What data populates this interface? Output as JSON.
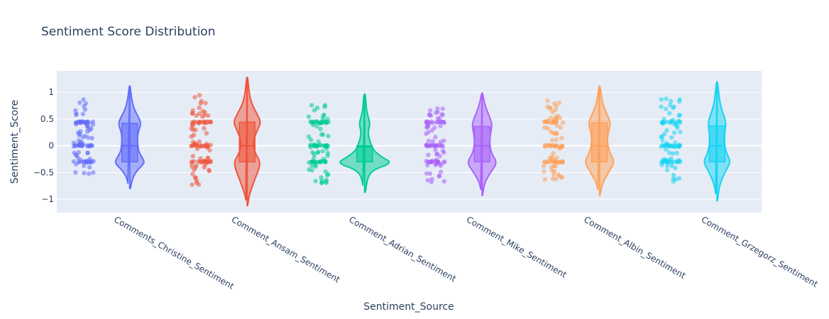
{
  "chart_data": {
    "type": "violin",
    "title": "Sentiment Score Distribution",
    "xlabel": "Sentiment_Source",
    "ylabel": "Sentiment_Score",
    "ylim": [
      -1.25,
      1.4
    ],
    "yticks": [
      -1,
      -0.5,
      0,
      0.5,
      1
    ],
    "ytick_labels": [
      "−1",
      "−0.5",
      "0",
      "0.5",
      "1"
    ],
    "grid": true,
    "legend": "none",
    "series": [
      {
        "name": "Comments_Christine_Sentiment",
        "color": "#636efa",
        "kde_max": 1.12,
        "kde_min": -0.8,
        "q1": -0.3,
        "median": 0.0,
        "q3": 0.42,
        "points_max": 0.87,
        "points_min": -0.53,
        "profile": [
          [
            -0.8,
            0.03
          ],
          [
            -0.6,
            0.1
          ],
          [
            -0.45,
            0.28
          ],
          [
            -0.32,
            0.55
          ],
          [
            -0.22,
            0.45
          ],
          [
            -0.1,
            0.32
          ],
          [
            0,
            0.3
          ],
          [
            0.1,
            0.28
          ],
          [
            0.25,
            0.3
          ],
          [
            0.42,
            0.42
          ],
          [
            0.55,
            0.3
          ],
          [
            0.7,
            0.15
          ],
          [
            0.9,
            0.06
          ],
          [
            1.12,
            0.02
          ]
        ]
      },
      {
        "name": "Comment_Ansam_Sentiment",
        "color": "#ef553b",
        "kde_max": 1.28,
        "kde_min": -1.12,
        "q1": -0.3,
        "median": 0.0,
        "q3": 0.44,
        "points_max": 0.96,
        "points_min": -0.8,
        "profile": [
          [
            -1.12,
            0.02
          ],
          [
            -0.9,
            0.08
          ],
          [
            -0.6,
            0.3
          ],
          [
            -0.32,
            0.5
          ],
          [
            -0.15,
            0.3
          ],
          [
            0,
            0.22
          ],
          [
            0.15,
            0.25
          ],
          [
            0.3,
            0.38
          ],
          [
            0.45,
            0.5
          ],
          [
            0.6,
            0.35
          ],
          [
            0.8,
            0.15
          ],
          [
            1.0,
            0.07
          ],
          [
            1.28,
            0.02
          ]
        ]
      },
      {
        "name": "Comment_Adrian_Sentiment",
        "color": "#00cc96",
        "kde_max": 0.97,
        "kde_min": -0.87,
        "q1": -0.3,
        "median": -0.02,
        "q3": 0.0,
        "points_max": 0.82,
        "points_min": -0.7,
        "profile": [
          [
            -0.87,
            0.03
          ],
          [
            -0.6,
            0.1
          ],
          [
            -0.45,
            0.3
          ],
          [
            -0.32,
            1.0
          ],
          [
            -0.22,
            0.65
          ],
          [
            -0.1,
            0.35
          ],
          [
            0,
            0.25
          ],
          [
            0.1,
            0.18
          ],
          [
            0.25,
            0.12
          ],
          [
            0.42,
            0.2
          ],
          [
            0.55,
            0.12
          ],
          [
            0.7,
            0.06
          ],
          [
            0.97,
            0.03
          ]
        ]
      },
      {
        "name": "Comment_Mike_Sentiment",
        "color": "#ab63fa",
        "kde_max": 0.99,
        "kde_min": -0.93,
        "q1": -0.3,
        "median": 0.0,
        "q3": 0.36,
        "points_max": 0.74,
        "points_min": -0.68,
        "profile": [
          [
            -0.93,
            0.02
          ],
          [
            -0.7,
            0.08
          ],
          [
            -0.5,
            0.3
          ],
          [
            -0.32,
            0.55
          ],
          [
            -0.15,
            0.35
          ],
          [
            0,
            0.28
          ],
          [
            0.15,
            0.28
          ],
          [
            0.3,
            0.33
          ],
          [
            0.42,
            0.36
          ],
          [
            0.6,
            0.22
          ],
          [
            0.8,
            0.08
          ],
          [
            0.99,
            0.02
          ]
        ]
      },
      {
        "name": "Comment_Albin_Sentiment",
        "color": "#ffa15a",
        "kde_max": 1.12,
        "kde_min": -0.93,
        "q1": -0.3,
        "median": 0.0,
        "q3": 0.43,
        "points_max": 0.85,
        "points_min": -0.65,
        "profile": [
          [
            -0.93,
            0.02
          ],
          [
            -0.7,
            0.1
          ],
          [
            -0.5,
            0.32
          ],
          [
            -0.3,
            0.55
          ],
          [
            -0.15,
            0.38
          ],
          [
            0,
            0.3
          ],
          [
            0.15,
            0.28
          ],
          [
            0.3,
            0.34
          ],
          [
            0.43,
            0.4
          ],
          [
            0.6,
            0.26
          ],
          [
            0.8,
            0.1
          ],
          [
            1.12,
            0.02
          ]
        ]
      },
      {
        "name": "Comment_Grzegorz_Sentiment",
        "color": "#19d3f3",
        "kde_max": 1.2,
        "kde_min": -1.03,
        "q1": -0.3,
        "median": 0.0,
        "q3": 0.37,
        "points_max": 0.93,
        "points_min": -0.75,
        "profile": [
          [
            -1.03,
            0.02
          ],
          [
            -0.75,
            0.08
          ],
          [
            -0.5,
            0.28
          ],
          [
            -0.3,
            0.5
          ],
          [
            -0.15,
            0.35
          ],
          [
            0,
            0.28
          ],
          [
            0.15,
            0.25
          ],
          [
            0.3,
            0.3
          ],
          [
            0.45,
            0.32
          ],
          [
            0.6,
            0.22
          ],
          [
            0.8,
            0.1
          ],
          [
            1.2,
            0.02
          ]
        ]
      }
    ]
  }
}
